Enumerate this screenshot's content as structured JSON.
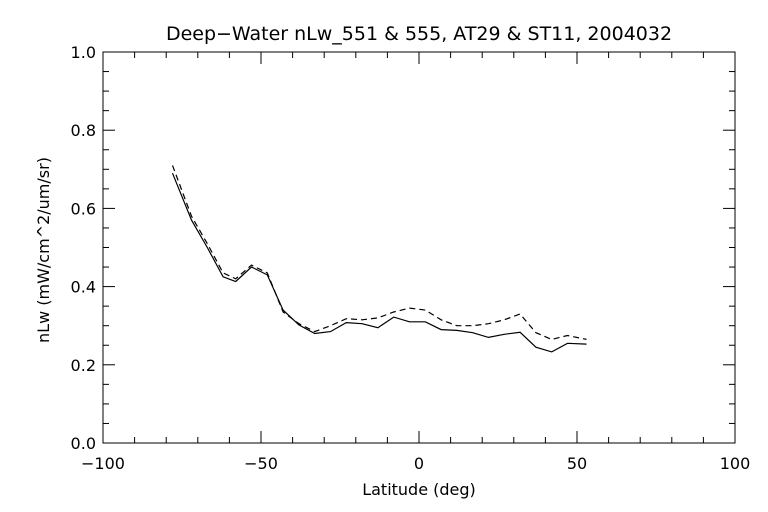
{
  "chart_data": {
    "type": "line",
    "title": "Deep−Water nLw_551 & 555, AT29 & ST11, 2004032",
    "xlabel": "Latitude (deg)",
    "ylabel": "nLw (mW/cm^2/um/sr)",
    "xlim": [
      -100,
      100
    ],
    "ylim": [
      0.0,
      1.0
    ],
    "x_ticks": [
      "−100",
      "−50",
      "0",
      "50",
      "100"
    ],
    "y_ticks": [
      "0.0",
      "0.2",
      "0.4",
      "0.6",
      "0.8",
      "1.0"
    ],
    "grid": false,
    "series": [
      {
        "line_style": "solid",
        "color": "#000000",
        "x": [
          -78,
          -72,
          -67,
          -62,
          -58,
          -53,
          -48,
          -43,
          -38,
          -33,
          -28,
          -23,
          -18,
          -13,
          -8,
          -3,
          2,
          7,
          12,
          17,
          22,
          27,
          32,
          37,
          42,
          47,
          53
        ],
        "y": [
          0.69,
          0.57,
          0.5,
          0.425,
          0.413,
          0.45,
          0.43,
          0.34,
          0.302,
          0.28,
          0.285,
          0.308,
          0.305,
          0.295,
          0.322,
          0.31,
          0.31,
          0.29,
          0.288,
          0.282,
          0.27,
          0.278,
          0.283,
          0.245,
          0.233,
          0.255,
          0.253
        ]
      },
      {
        "line_style": "dashed",
        "color": "#000000",
        "x": [
          -78,
          -72,
          -67,
          -62,
          -58,
          -53,
          -48,
          -43,
          -38,
          -33,
          -28,
          -23,
          -18,
          -13,
          -8,
          -3,
          2,
          7,
          12,
          17,
          22,
          27,
          32,
          37,
          42,
          47,
          53
        ],
        "y": [
          0.71,
          0.58,
          0.51,
          0.435,
          0.42,
          0.455,
          0.435,
          0.335,
          0.305,
          0.285,
          0.3,
          0.318,
          0.315,
          0.32,
          0.335,
          0.345,
          0.34,
          0.315,
          0.3,
          0.3,
          0.305,
          0.315,
          0.33,
          0.282,
          0.265,
          0.275,
          0.265
        ]
      }
    ]
  }
}
